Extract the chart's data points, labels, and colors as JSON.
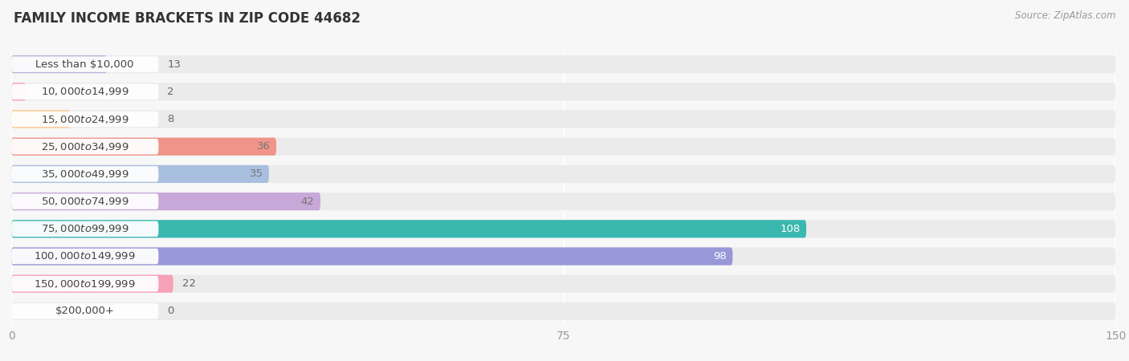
{
  "title": "FAMILY INCOME BRACKETS IN ZIP CODE 44682",
  "source": "Source: ZipAtlas.com",
  "categories": [
    "Less than $10,000",
    "$10,000 to $14,999",
    "$15,000 to $24,999",
    "$25,000 to $34,999",
    "$35,000 to $49,999",
    "$50,000 to $74,999",
    "$75,000 to $99,999",
    "$100,000 to $149,999",
    "$150,000 to $199,999",
    "$200,000+"
  ],
  "values": [
    13,
    2,
    8,
    36,
    35,
    42,
    108,
    98,
    22,
    0
  ],
  "bar_colors": [
    "#b3b3d9",
    "#f4a0b0",
    "#f9c88a",
    "#f0948a",
    "#a8bfdf",
    "#c8a8d8",
    "#3ab8b0",
    "#9898d8",
    "#f8a0b8",
    "#f9c88a"
  ],
  "label_colors_inside": [
    "#777777",
    "#777777",
    "#777777",
    "#777777",
    "#777777",
    "#777777",
    "#ffffff",
    "#ffffff",
    "#777777",
    "#777777"
  ],
  "xlim": [
    0,
    150
  ],
  "xticks": [
    0,
    75,
    150
  ],
  "background_color": "#f7f7f7",
  "row_bg_color": "#ebebeb",
  "bar_height": 0.65,
  "title_fontsize": 12,
  "source_fontsize": 8.5,
  "cat_fontsize": 9.5,
  "val_fontsize": 9.5
}
